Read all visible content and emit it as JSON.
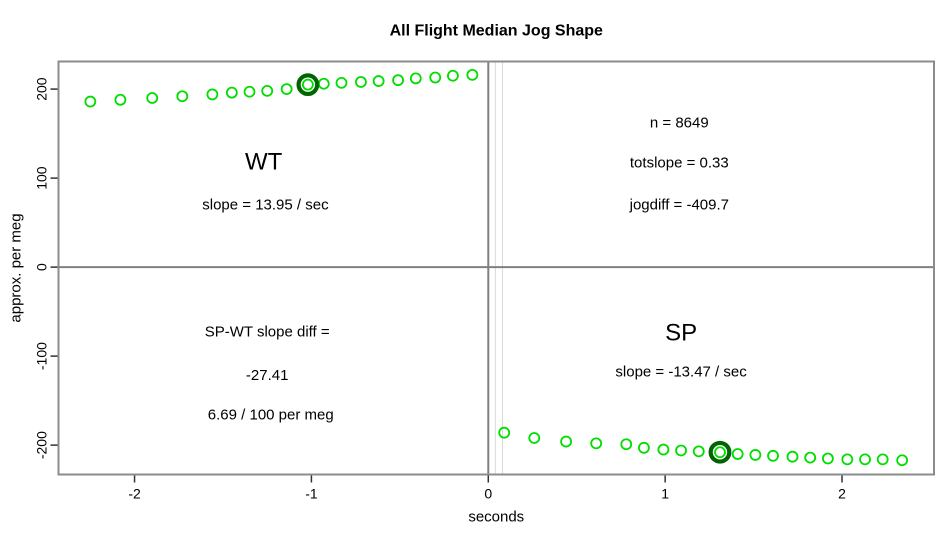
{
  "chart_data": {
    "type": "scatter",
    "title": "All Flight Median Jog Shape",
    "xlabel": "seconds",
    "ylabel": "approx. per meg",
    "xlim": [
      -2.43,
      2.52
    ],
    "ylim": [
      -233,
      231
    ],
    "x_ticks": [
      -2,
      -1,
      0,
      1,
      2
    ],
    "y_ticks": [
      -200,
      -100,
      0,
      100,
      200
    ],
    "grid": false,
    "legend": "none",
    "colors": {
      "point": "#00DE00",
      "highlight": "#006400",
      "box": "#8C8C8C",
      "reference_dark": "#808080",
      "reference_light": "#D9D9D9",
      "tick": "#333333",
      "text": "#000000",
      "background": "#FFFFFF"
    },
    "reference_lines": [
      {
        "orient": "v",
        "pos": 0.04,
        "color": "#D9D9D9",
        "width": 1
      },
      {
        "orient": "v",
        "pos": 0.08,
        "color": "#D9D9D9",
        "width": 1
      },
      {
        "orient": "h",
        "pos": 0,
        "color": "#808080",
        "width": 2
      },
      {
        "orient": "v",
        "pos": 0,
        "color": "#808080",
        "width": 2
      }
    ],
    "series": [
      {
        "name": "WT",
        "highlight_index": 9,
        "points": [
          [
            -2.25,
            186
          ],
          [
            -2.08,
            188
          ],
          [
            -1.9,
            190
          ],
          [
            -1.73,
            192
          ],
          [
            -1.56,
            194
          ],
          [
            -1.45,
            196
          ],
          [
            -1.35,
            197
          ],
          [
            -1.25,
            198
          ],
          [
            -1.14,
            200
          ],
          [
            -1.02,
            205
          ],
          [
            -0.93,
            206
          ],
          [
            -0.83,
            207
          ],
          [
            -0.72,
            208
          ],
          [
            -0.62,
            209
          ],
          [
            -0.51,
            210
          ],
          [
            -0.41,
            212
          ],
          [
            -0.3,
            213
          ],
          [
            -0.2,
            215
          ],
          [
            -0.09,
            216
          ]
        ]
      },
      {
        "name": "SP",
        "highlight_index": 9,
        "points": [
          [
            0.09,
            -186
          ],
          [
            0.26,
            -192
          ],
          [
            0.44,
            -196
          ],
          [
            0.61,
            -198
          ],
          [
            0.78,
            -199
          ],
          [
            0.88,
            -203
          ],
          [
            0.99,
            -205
          ],
          [
            1.09,
            -206
          ],
          [
            1.19,
            -207
          ],
          [
            1.31,
            -208
          ],
          [
            1.41,
            -210
          ],
          [
            1.51,
            -211
          ],
          [
            1.61,
            -212
          ],
          [
            1.72,
            -213
          ],
          [
            1.82,
            -214
          ],
          [
            1.92,
            -215
          ],
          [
            2.03,
            -216
          ],
          [
            2.13,
            -216
          ],
          [
            2.23,
            -216
          ],
          [
            2.34,
            -217
          ]
        ]
      }
    ],
    "annotations": [
      {
        "name": "wt-label",
        "text": "WT",
        "x": -1.27,
        "y": 118,
        "size": 24
      },
      {
        "name": "wt-slope",
        "text": "slope = 13.95 / sec",
        "x": -1.26,
        "y": 70,
        "size": 15
      },
      {
        "name": "n-count",
        "text": "n = 8649",
        "x": 1.08,
        "y": 162,
        "size": 15
      },
      {
        "name": "totslope",
        "text": "totslope = 0.33",
        "x": 1.08,
        "y": 117,
        "size": 15
      },
      {
        "name": "jogdiff",
        "text": "jogdiff = -409.7",
        "x": 1.08,
        "y": 70,
        "size": 15
      },
      {
        "name": "spwt-slope-diff-line1",
        "text": "SP-WT slope diff =",
        "x": -1.25,
        "y": -73,
        "size": 15
      },
      {
        "name": "spwt-slope-diff-line2",
        "text": "-27.41",
        "x": -1.25,
        "y": -122,
        "size": 15
      },
      {
        "name": "spwt-slope-diff-line3",
        "text": "6.69 / 100 per meg",
        "x": -1.23,
        "y": -166,
        "size": 15
      },
      {
        "name": "sp-label",
        "text": "SP",
        "x": 1.09,
        "y": -74,
        "size": 24
      },
      {
        "name": "sp-slope",
        "text": "slope = -13.47 / sec",
        "x": 1.09,
        "y": -118,
        "size": 15
      }
    ]
  }
}
